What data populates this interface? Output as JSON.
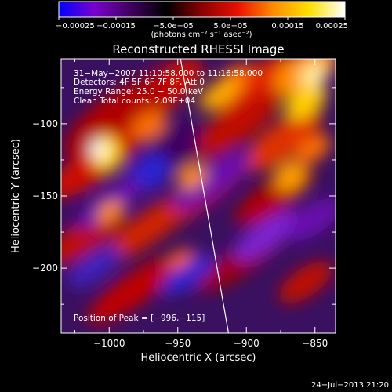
{
  "chart_data": {
    "type": "heatmap",
    "title": "Reconstructed RHESSI Image",
    "xlabel": "Heliocentric X (arcsec)",
    "ylabel": "Heliocentric Y (arcsec)",
    "xlim": [
      -1035,
      -835
    ],
    "ylim": [
      -245,
      -55
    ],
    "x_ticks": [
      -1000,
      -950,
      -900,
      -850
    ],
    "x_tick_labels": [
      "−1000",
      "−950",
      "−900",
      "−850"
    ],
    "y_ticks": [
      -100,
      -150,
      -200
    ],
    "y_tick_labels": [
      "−100",
      "−150",
      "−200"
    ],
    "colorbar": {
      "range": [
        -0.00025,
        0.00025
      ],
      "ticks": [
        -0.00025,
        -0.00015,
        -5e-05,
        5e-05,
        0.00015,
        0.00025
      ],
      "tick_labels": [
        "−0.00025",
        "−0.00015",
        "−5.0e−05",
        "5.0e−05",
        "0.00015",
        "0.00025"
      ],
      "unit_label": "(photons cm⁻² s⁻¹ asec⁻²)",
      "colors": [
        "#0000ff",
        "#7a00cc",
        "#400060",
        "#000000",
        "#8a0000",
        "#e81000",
        "#ff8c00",
        "#ffe000",
        "#ffffff"
      ]
    },
    "annotations": [
      "31−May−2007 11:10:58.000 to 11:16:58.000",
      "Detectors: 4F 5F 6F 7F 8F, Att 0",
      "Energy Range: 25.0 − 50.0 keV",
      "Clean    Total counts: 2.09E+04"
    ],
    "peak_label": "Position of Peak = [−996,−115]",
    "peak": [
      -996,
      -115
    ],
    "timestamp": "24−Jul−2013 21:20",
    "limb_line": [
      [
        -948,
        -55
      ],
      [
        -913,
        -245
      ]
    ]
  }
}
